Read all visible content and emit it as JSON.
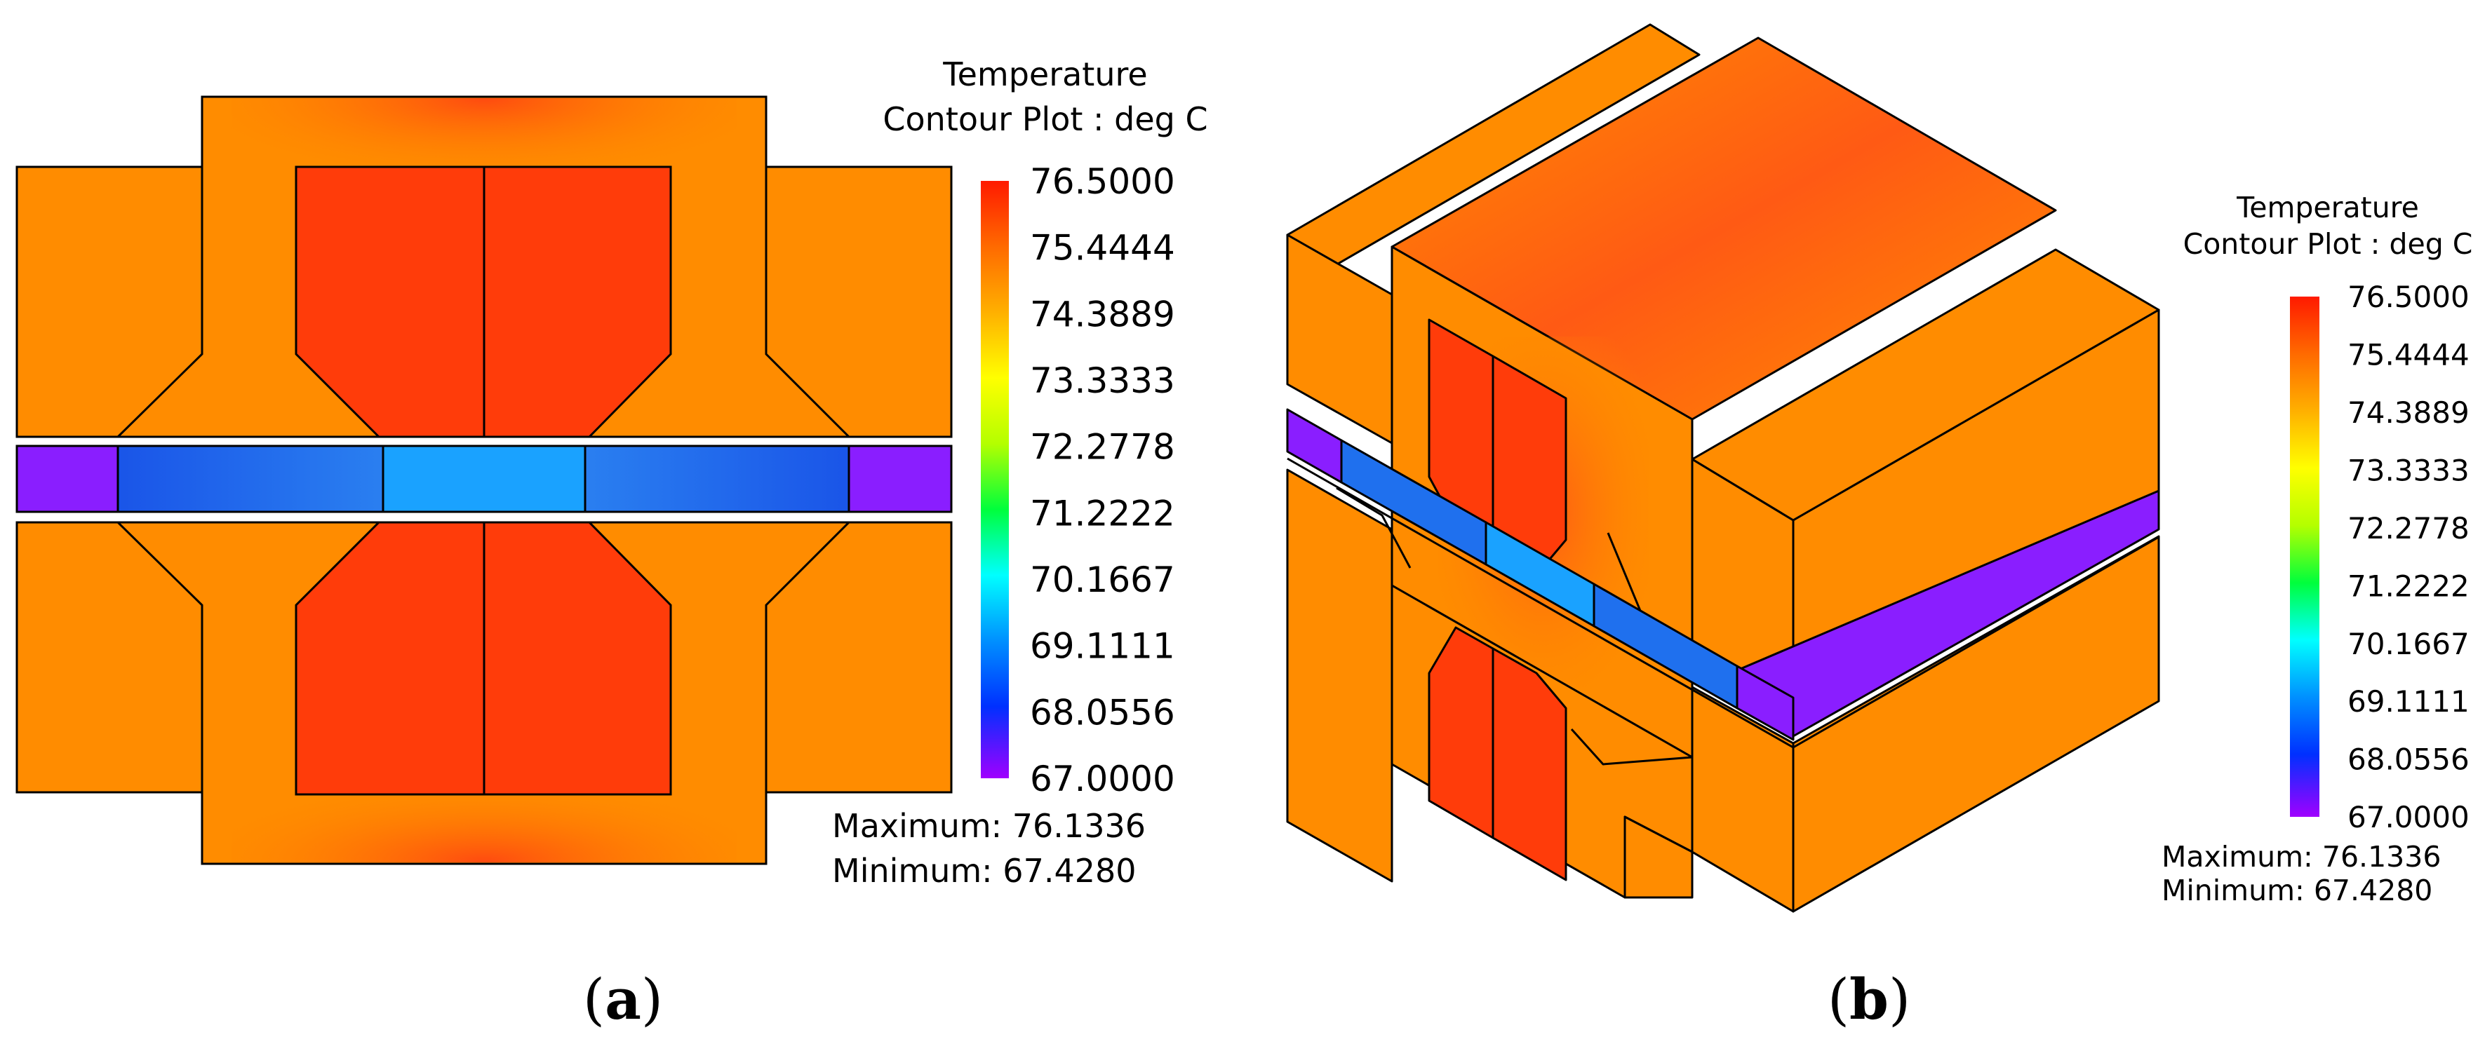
{
  "colors": {
    "scale": [
      "#8b00ff",
      "#0044ff",
      "#0090ff",
      "#00ffff",
      "#00ff40",
      "#c8ff00",
      "#ffff00",
      "#ffb000",
      "#ff7b00",
      "#ff2400"
    ],
    "core": "#ff8c00",
    "coil": "#ff3c0a",
    "hot": "#ff5a14",
    "gap_outer": "#8a1eff",
    "gap_mid": "#1f70ee",
    "gap_center": "#1aa2ff"
  },
  "panels": [
    {
      "id": "a",
      "caption_open": "(",
      "caption_letter": "a",
      "caption_close": ")",
      "legend": {
        "title_line1": "Temperature",
        "title_line2": "Contour Plot : deg C",
        "ticks": [
          "76.5000",
          "75.4444",
          "74.3889",
          "73.3333",
          "72.2778",
          "71.2222",
          "70.1667",
          "69.1111",
          "68.0556",
          "67.0000"
        ],
        "maximum": "Maximum: 76.1336",
        "minimum": "Minimum: 67.4280"
      }
    },
    {
      "id": "b",
      "caption_open": "(",
      "caption_letter": "b",
      "caption_close": ")",
      "legend": {
        "title_line1": "Temperature",
        "title_line2": "Contour Plot : deg C",
        "ticks": [
          "76.5000",
          "75.4444",
          "74.3889",
          "73.3333",
          "72.2778",
          "71.2222",
          "70.1667",
          "69.1111",
          "68.0556",
          "67.0000"
        ],
        "maximum": "Maximum: 76.1336",
        "minimum": "Minimum: 67.4280"
      }
    }
  ]
}
